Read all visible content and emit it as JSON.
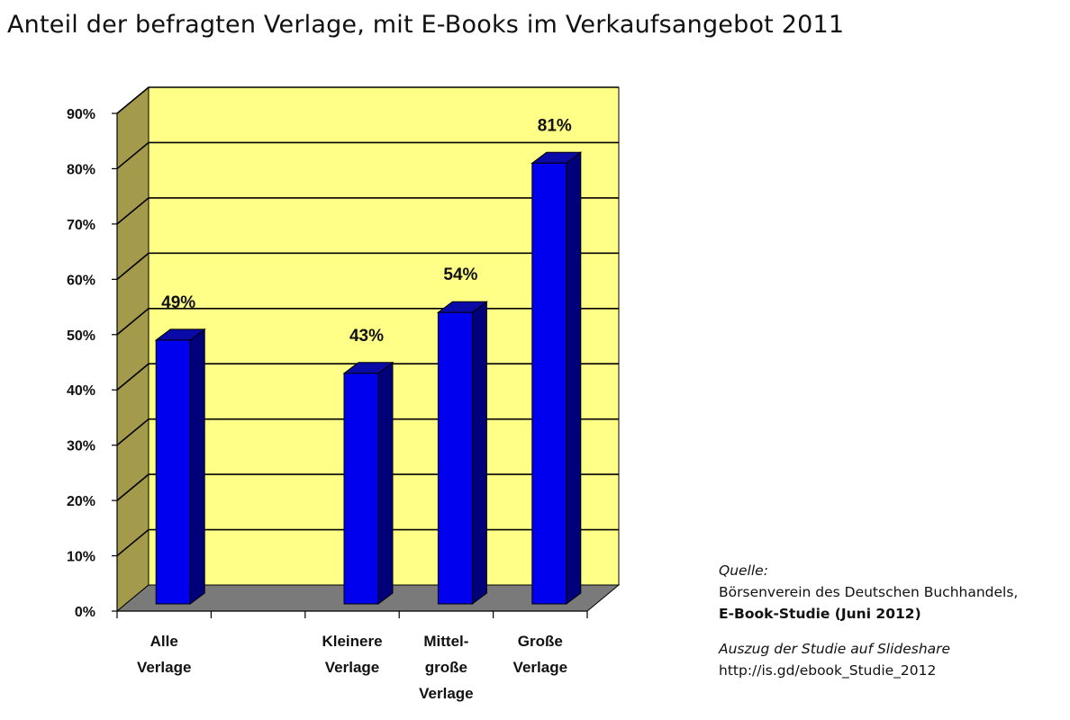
{
  "chart_data": {
    "type": "bar",
    "title": "Anteil der befragten Verlage, mit E-Books im Verkaufsangebot 2011",
    "categories": [
      [
        "Alle",
        "Verlage"
      ],
      [],
      [
        "Kleinere",
        "Verlage"
      ],
      [
        "Mittel-",
        "große",
        "Verlage"
      ],
      [
        "Große",
        "Verlage"
      ]
    ],
    "values": [
      49,
      null,
      43,
      54,
      81
    ],
    "data_labels": [
      "49%",
      "",
      "43%",
      "54%",
      "81%"
    ],
    "yticks": [
      "0%",
      "10%",
      "20%",
      "30%",
      "40%",
      "50%",
      "60%",
      "70%",
      "80%",
      "90%"
    ],
    "ylim": [
      0,
      90
    ],
    "grid": true,
    "style": "3d",
    "colors": {
      "bar_front": "#0000ee",
      "bar_side": "#00007a",
      "bar_top": "#0a0aa8",
      "back_wall": "#ffff88",
      "side_wall": "#a39a4c",
      "floor": "#7a7a7a"
    }
  },
  "source": {
    "label": "Quelle:",
    "line1": "Börsenverein des Deutschen Buchhandels,",
    "line2": "E-Book-Studie (Juni 2012)",
    "line3": "Auszug der Studie auf Slideshare",
    "line4": "http://is.gd/ebook_Studie_2012"
  }
}
